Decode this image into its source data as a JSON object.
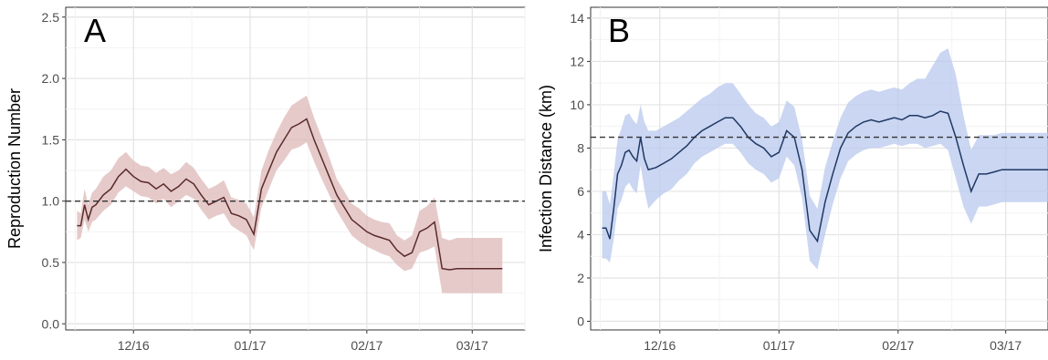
{
  "chart_data": [
    {
      "panel_label": "A",
      "type": "line",
      "ylabel": "Reproduction Number",
      "xlabel": "",
      "x_ticks": [
        "12/16",
        "01/17",
        "02/17",
        "03/17"
      ],
      "x_tick_values": [
        15,
        46,
        77,
        105
      ],
      "xlim": [
        -3,
        119
      ],
      "ylim": [
        -0.05,
        2.58
      ],
      "y_ticks": [
        "0.0",
        "0.5",
        "1.0",
        "1.5",
        "2.0",
        "2.5"
      ],
      "y_tick_values": [
        0.0,
        0.5,
        1.0,
        1.5,
        2.0,
        2.5
      ],
      "reference_line": 1.0,
      "line_color": "#5a2a2a",
      "band_color": "#ddb8b8",
      "grid": true,
      "series": [
        {
          "day": [
            0,
            1,
            2,
            3,
            4,
            5,
            7,
            9,
            11,
            13,
            15,
            17,
            19,
            21,
            23,
            25,
            27,
            29,
            31,
            33,
            35,
            37,
            39,
            41,
            43,
            45,
            47,
            49,
            51,
            53,
            55,
            57,
            59,
            61,
            63,
            65,
            67,
            69,
            71,
            73,
            75,
            77,
            79,
            81,
            83,
            85,
            87,
            89,
            91,
            93,
            95,
            97,
            99,
            101,
            103,
            105,
            107,
            108,
            109,
            110,
            111,
            112,
            113
          ],
          "value": [
            0.8,
            0.8,
            0.97,
            0.85,
            0.95,
            0.97,
            1.05,
            1.1,
            1.2,
            1.26,
            1.2,
            1.16,
            1.15,
            1.1,
            1.14,
            1.08,
            1.12,
            1.18,
            1.14,
            1.05,
            0.97,
            1.0,
            1.03,
            0.9,
            0.88,
            0.85,
            0.73,
            1.1,
            1.25,
            1.4,
            1.5,
            1.6,
            1.63,
            1.67,
            1.5,
            1.35,
            1.2,
            1.05,
            0.95,
            0.85,
            0.8,
            0.75,
            0.72,
            0.7,
            0.68,
            0.6,
            0.55,
            0.58,
            0.75,
            0.78,
            0.83,
            0.45,
            0.44,
            0.45,
            0.45,
            0.45,
            0.45,
            0.45,
            0.45,
            0.45,
            0.45,
            0.45,
            0.45
          ],
          "lower": [
            0.68,
            0.7,
            0.85,
            0.75,
            0.83,
            0.85,
            0.92,
            0.97,
            1.07,
            1.12,
            1.08,
            1.04,
            1.03,
            0.98,
            1.02,
            0.95,
            1.0,
            1.05,
            1.02,
            0.93,
            0.85,
            0.88,
            0.9,
            0.8,
            0.76,
            0.72,
            0.6,
            0.95,
            1.1,
            1.25,
            1.33,
            1.42,
            1.44,
            1.48,
            1.32,
            1.18,
            1.05,
            0.92,
            0.82,
            0.72,
            0.67,
            0.63,
            0.6,
            0.57,
            0.55,
            0.48,
            0.43,
            0.45,
            0.58,
            0.6,
            0.63,
            0.25,
            0.25,
            0.25,
            0.25,
            0.25,
            0.25,
            0.25,
            0.25,
            0.25,
            0.25,
            0.25,
            0.25
          ],
          "upper": [
            0.92,
            0.9,
            1.1,
            0.97,
            1.07,
            1.1,
            1.2,
            1.25,
            1.35,
            1.4,
            1.33,
            1.29,
            1.28,
            1.23,
            1.27,
            1.22,
            1.25,
            1.32,
            1.27,
            1.18,
            1.1,
            1.13,
            1.17,
            1.03,
            1.01,
            0.98,
            0.87,
            1.25,
            1.42,
            1.56,
            1.68,
            1.78,
            1.82,
            1.86,
            1.68,
            1.52,
            1.36,
            1.18,
            1.08,
            0.98,
            0.94,
            0.88,
            0.85,
            0.83,
            0.82,
            0.72,
            0.68,
            0.72,
            0.92,
            0.96,
            1.03,
            0.7,
            0.68,
            0.7,
            0.7,
            0.7,
            0.7,
            0.7,
            0.7,
            0.7,
            0.7,
            0.7,
            0.7
          ]
        }
      ]
    },
    {
      "panel_label": "B",
      "type": "line",
      "ylabel": "Infection Distance (km)",
      "xlabel": "",
      "x_ticks": [
        "12/16",
        "01/17",
        "02/17",
        "03/17"
      ],
      "x_tick_values": [
        15,
        46,
        77,
        105
      ],
      "xlim": [
        -3,
        116
      ],
      "ylim": [
        -0.4,
        14.5
      ],
      "y_ticks": [
        "0",
        "2",
        "4",
        "6",
        "8",
        "10",
        "12",
        "14"
      ],
      "y_tick_values": [
        0,
        2,
        4,
        6,
        8,
        10,
        12,
        14
      ],
      "reference_line": 8.5,
      "line_color": "#1f3864",
      "band_color": "#b8c8ee",
      "grid": true,
      "series": [
        {
          "day": [
            0,
            1,
            2,
            3,
            4,
            5,
            6,
            7,
            8,
            9,
            10,
            11,
            12,
            14,
            16,
            18,
            20,
            22,
            24,
            26,
            28,
            30,
            32,
            34,
            36,
            38,
            40,
            42,
            44,
            46,
            48,
            50,
            52,
            54,
            56,
            58,
            60,
            62,
            64,
            66,
            68,
            70,
            72,
            74,
            76,
            78,
            80,
            82,
            84,
            86,
            88,
            90,
            92,
            94,
            96,
            98,
            100,
            102,
            104,
            106,
            108,
            110,
            111,
            112,
            113,
            114,
            115,
            116,
            117,
            118
          ],
          "value": [
            4.3,
            4.3,
            3.8,
            5.2,
            6.8,
            7.2,
            7.8,
            7.9,
            7.6,
            7.4,
            8.5,
            7.5,
            7.0,
            7.1,
            7.3,
            7.5,
            7.8,
            8.1,
            8.5,
            8.8,
            9.0,
            9.2,
            9.4,
            9.4,
            9.0,
            8.5,
            8.2,
            8.0,
            7.6,
            7.8,
            8.8,
            8.5,
            7.0,
            4.2,
            3.7,
            5.5,
            6.8,
            8.0,
            8.7,
            9.0,
            9.2,
            9.3,
            9.2,
            9.3,
            9.4,
            9.3,
            9.5,
            9.5,
            9.4,
            9.5,
            9.7,
            9.6,
            8.5,
            7.2,
            6.0,
            6.8,
            6.8,
            6.9,
            7.0,
            7.0,
            7.0,
            7.0,
            7.0,
            7.0,
            7.0,
            7.0,
            7.0,
            7.0,
            7.0,
            7.0
          ],
          "lower": [
            2.9,
            2.9,
            2.7,
            3.8,
            5.2,
            5.6,
            6.2,
            6.4,
            6.1,
            5.9,
            7.2,
            6.1,
            5.2,
            5.6,
            5.9,
            6.1,
            6.5,
            6.8,
            7.3,
            7.6,
            7.8,
            8.0,
            8.2,
            8.2,
            7.8,
            7.3,
            7.0,
            6.8,
            6.4,
            6.6,
            7.6,
            7.2,
            5.7,
            2.8,
            2.4,
            4.0,
            5.4,
            6.6,
            7.4,
            7.7,
            7.9,
            8.0,
            8.0,
            8.1,
            8.2,
            8.1,
            8.2,
            8.2,
            8.0,
            8.1,
            8.2,
            7.9,
            6.6,
            5.3,
            4.5,
            5.3,
            5.3,
            5.4,
            5.5,
            5.5,
            5.5,
            5.5,
            5.5,
            5.5,
            5.5,
            5.5,
            5.5,
            5.5,
            5.5,
            5.5
          ],
          "upper": [
            6.0,
            6.0,
            5.4,
            6.8,
            8.4,
            8.9,
            9.5,
            9.6,
            9.3,
            9.1,
            10.0,
            9.2,
            8.8,
            8.8,
            9.0,
            9.2,
            9.4,
            9.7,
            10.0,
            10.3,
            10.5,
            10.8,
            11.0,
            11.0,
            10.5,
            10.0,
            9.6,
            9.4,
            9.0,
            9.2,
            10.2,
            9.9,
            8.4,
            5.8,
            5.2,
            7.1,
            8.3,
            9.4,
            10.1,
            10.4,
            10.6,
            10.7,
            10.6,
            10.7,
            10.8,
            10.7,
            11.0,
            11.2,
            11.2,
            11.8,
            12.4,
            12.6,
            11.4,
            9.5,
            7.9,
            8.6,
            8.6,
            8.6,
            8.7,
            8.7,
            8.7,
            8.7,
            8.7,
            8.7,
            8.7,
            8.7,
            8.7,
            8.7,
            8.7,
            8.7
          ]
        }
      ]
    }
  ]
}
